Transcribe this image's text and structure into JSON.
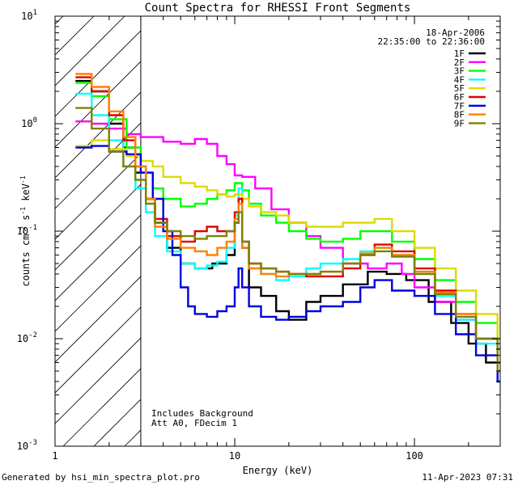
{
  "chart_data": {
    "type": "line",
    "title": "Count Spectra for RHESSI Front Segments",
    "xlabel": "Energy (keV)",
    "ylabel": "counts cm",
    "ylabel_sup1": "-2",
    "ylabel_mid": " s",
    "ylabel_sup2": "-1",
    "ylabel_end": " keV",
    "ylabel_sup3": "-1",
    "xscale": "log",
    "yscale": "log",
    "xlim": [
      1,
      300
    ],
    "ylim": [
      0.001,
      10
    ],
    "x_ticks": [
      1,
      10,
      100
    ],
    "x_tick_labels": [
      "1",
      "10",
      "100"
    ],
    "y_ticks": [
      0.001,
      0.01,
      0.1,
      1,
      10
    ],
    "y_tick_base": "10",
    "y_tick_exps": [
      "-3",
      "-2",
      "-1",
      "0",
      "1"
    ],
    "date": "18-Apr-2006",
    "time_range": "22:35:00 to 22:36:00",
    "annotation_line1": "Includes Background",
    "annotation_line2": "Att A0, FDecim 1",
    "shaded_region_max_keV": 3,
    "series": [
      {
        "name": "1F",
        "color": "#000000",
        "points": [
          [
            1.3,
            2.5
          ],
          [
            1.6,
            2.0
          ],
          [
            2.0,
            1.0
          ],
          [
            2.4,
            0.6
          ],
          [
            2.8,
            0.35
          ],
          [
            3.2,
            0.2
          ],
          [
            3.6,
            0.12
          ],
          [
            4.2,
            0.07
          ],
          [
            5.0,
            0.05
          ],
          [
            6.0,
            0.045
          ],
          [
            7.5,
            0.05
          ],
          [
            9.0,
            0.06
          ],
          [
            10.0,
            0.12
          ],
          [
            10.5,
            0.2
          ],
          [
            11.0,
            0.07
          ],
          [
            12.0,
            0.03
          ],
          [
            14.0,
            0.025
          ],
          [
            17.0,
            0.018
          ],
          [
            20.0,
            0.015
          ],
          [
            25.0,
            0.022
          ],
          [
            30.0,
            0.025
          ],
          [
            40.0,
            0.032
          ],
          [
            55.0,
            0.042
          ],
          [
            70.0,
            0.04
          ],
          [
            90.0,
            0.035
          ],
          [
            120.0,
            0.022
          ],
          [
            160.0,
            0.014
          ],
          [
            200.0,
            0.009
          ],
          [
            250.0,
            0.006
          ],
          [
            290.0,
            0.004
          ]
        ]
      },
      {
        "name": "2F",
        "color": "#ff00ff",
        "points": [
          [
            1.3,
            1.05
          ],
          [
            1.6,
            1.0
          ],
          [
            2.0,
            0.9
          ],
          [
            2.5,
            0.8
          ],
          [
            3.0,
            0.75
          ],
          [
            4.0,
            0.68
          ],
          [
            5.0,
            0.65
          ],
          [
            6.0,
            0.72
          ],
          [
            7.0,
            0.65
          ],
          [
            8.0,
            0.5
          ],
          [
            9.0,
            0.42
          ],
          [
            10.0,
            0.33
          ],
          [
            11.0,
            0.32
          ],
          [
            13.0,
            0.25
          ],
          [
            16.0,
            0.16
          ],
          [
            20.0,
            0.12
          ],
          [
            25.0,
            0.09
          ],
          [
            30.0,
            0.07
          ],
          [
            40.0,
            0.05
          ],
          [
            55.0,
            0.045
          ],
          [
            70.0,
            0.05
          ],
          [
            85.0,
            0.04
          ],
          [
            100.0,
            0.03
          ],
          [
            130.0,
            0.022
          ],
          [
            170.0,
            0.015
          ],
          [
            220.0,
            0.01
          ],
          [
            290.0,
            0.006
          ]
        ]
      },
      {
        "name": "3F",
        "color": "#00ff00",
        "points": [
          [
            1.3,
            2.4
          ],
          [
            1.6,
            1.8
          ],
          [
            2.0,
            1.1
          ],
          [
            2.5,
            0.6
          ],
          [
            3.0,
            0.35
          ],
          [
            3.5,
            0.25
          ],
          [
            4.0,
            0.2
          ],
          [
            5.0,
            0.17
          ],
          [
            6.0,
            0.18
          ],
          [
            7.0,
            0.2
          ],
          [
            8.0,
            0.22
          ],
          [
            9.0,
            0.24
          ],
          [
            10.0,
            0.28
          ],
          [
            11.0,
            0.24
          ],
          [
            12.0,
            0.18
          ],
          [
            14.0,
            0.14
          ],
          [
            17.0,
            0.12
          ],
          [
            20.0,
            0.1
          ],
          [
            25.0,
            0.085
          ],
          [
            30.0,
            0.08
          ],
          [
            40.0,
            0.085
          ],
          [
            50.0,
            0.1
          ],
          [
            60.0,
            0.1
          ],
          [
            75.0,
            0.08
          ],
          [
            100.0,
            0.055
          ],
          [
            130.0,
            0.035
          ],
          [
            170.0,
            0.022
          ],
          [
            220.0,
            0.014
          ],
          [
            290.0,
            0.008
          ]
        ]
      },
      {
        "name": "4F",
        "color": "#00ffff",
        "points": [
          [
            1.3,
            1.9
          ],
          [
            1.6,
            1.2
          ],
          [
            2.0,
            0.7
          ],
          [
            2.4,
            0.4
          ],
          [
            2.8,
            0.25
          ],
          [
            3.2,
            0.15
          ],
          [
            3.6,
            0.09
          ],
          [
            4.2,
            0.065
          ],
          [
            5.0,
            0.05
          ],
          [
            6.0,
            0.045
          ],
          [
            7.0,
            0.048
          ],
          [
            8.0,
            0.052
          ],
          [
            9.0,
            0.07
          ],
          [
            10.0,
            0.14
          ],
          [
            10.5,
            0.25
          ],
          [
            11.0,
            0.08
          ],
          [
            12.0,
            0.045
          ],
          [
            14.0,
            0.04
          ],
          [
            17.0,
            0.035
          ],
          [
            20.0,
            0.038
          ],
          [
            25.0,
            0.045
          ],
          [
            30.0,
            0.05
          ],
          [
            40.0,
            0.055
          ],
          [
            50.0,
            0.065
          ],
          [
            60.0,
            0.07
          ],
          [
            75.0,
            0.06
          ],
          [
            100.0,
            0.04
          ],
          [
            130.0,
            0.025
          ],
          [
            170.0,
            0.015
          ],
          [
            220.0,
            0.009
          ],
          [
            290.0,
            0.005
          ]
        ]
      },
      {
        "name": "5F",
        "color": "#dcdc00",
        "points": [
          [
            1.3,
            0.62
          ],
          [
            1.6,
            0.7
          ],
          [
            2.0,
            0.58
          ],
          [
            2.5,
            0.5
          ],
          [
            3.0,
            0.45
          ],
          [
            3.5,
            0.4
          ],
          [
            4.0,
            0.32
          ],
          [
            5.0,
            0.28
          ],
          [
            6.0,
            0.26
          ],
          [
            7.0,
            0.24
          ],
          [
            8.0,
            0.22
          ],
          [
            9.0,
            0.21
          ],
          [
            10.0,
            0.22
          ],
          [
            11.0,
            0.2
          ],
          [
            12.0,
            0.17
          ],
          [
            14.0,
            0.15
          ],
          [
            17.0,
            0.14
          ],
          [
            20.0,
            0.12
          ],
          [
            25.0,
            0.11
          ],
          [
            30.0,
            0.11
          ],
          [
            40.0,
            0.12
          ],
          [
            50.0,
            0.12
          ],
          [
            60.0,
            0.13
          ],
          [
            75.0,
            0.1
          ],
          [
            100.0,
            0.07
          ],
          [
            130.0,
            0.045
          ],
          [
            170.0,
            0.028
          ],
          [
            220.0,
            0.017
          ],
          [
            290.0,
            0.01
          ]
        ]
      },
      {
        "name": "6F",
        "color": "#e00000",
        "points": [
          [
            1.3,
            2.7
          ],
          [
            1.6,
            2.0
          ],
          [
            2.0,
            1.2
          ],
          [
            2.4,
            0.7
          ],
          [
            2.8,
            0.4
          ],
          [
            3.2,
            0.2
          ],
          [
            3.6,
            0.13
          ],
          [
            4.2,
            0.09
          ],
          [
            5.0,
            0.08
          ],
          [
            6.0,
            0.1
          ],
          [
            7.0,
            0.11
          ],
          [
            8.0,
            0.1
          ],
          [
            9.0,
            0.1
          ],
          [
            10.0,
            0.15
          ],
          [
            10.5,
            0.2
          ],
          [
            11.0,
            0.08
          ],
          [
            12.0,
            0.05
          ],
          [
            14.0,
            0.045
          ],
          [
            17.0,
            0.042
          ],
          [
            20.0,
            0.04
          ],
          [
            25.0,
            0.038
          ],
          [
            30.0,
            0.038
          ],
          [
            40.0,
            0.045
          ],
          [
            50.0,
            0.06
          ],
          [
            60.0,
            0.075
          ],
          [
            75.0,
            0.065
          ],
          [
            100.0,
            0.045
          ],
          [
            130.0,
            0.028
          ],
          [
            170.0,
            0.017
          ],
          [
            220.0,
            0.01
          ],
          [
            290.0,
            0.006
          ]
        ]
      },
      {
        "name": "7F",
        "color": "#0000e0",
        "points": [
          [
            1.3,
            0.6
          ],
          [
            1.6,
            0.62
          ],
          [
            2.0,
            0.55
          ],
          [
            2.5,
            0.52
          ],
          [
            3.0,
            0.35
          ],
          [
            3.5,
            0.2
          ],
          [
            4.0,
            0.1
          ],
          [
            4.5,
            0.06
          ],
          [
            5.0,
            0.03
          ],
          [
            5.5,
            0.02
          ],
          [
            6.0,
            0.017
          ],
          [
            7.0,
            0.016
          ],
          [
            8.0,
            0.018
          ],
          [
            9.0,
            0.02
          ],
          [
            10.0,
            0.03
          ],
          [
            10.5,
            0.045
          ],
          [
            11.0,
            0.03
          ],
          [
            12.0,
            0.02
          ],
          [
            14.0,
            0.016
          ],
          [
            17.0,
            0.015
          ],
          [
            20.0,
            0.016
          ],
          [
            25.0,
            0.018
          ],
          [
            30.0,
            0.02
          ],
          [
            40.0,
            0.022
          ],
          [
            50.0,
            0.03
          ],
          [
            60.0,
            0.035
          ],
          [
            75.0,
            0.028
          ],
          [
            100.0,
            0.025
          ],
          [
            130.0,
            0.017
          ],
          [
            170.0,
            0.011
          ],
          [
            220.0,
            0.007
          ],
          [
            290.0,
            0.004
          ]
        ]
      },
      {
        "name": "8F",
        "color": "#ff8000",
        "points": [
          [
            1.3,
            2.9
          ],
          [
            1.6,
            2.2
          ],
          [
            2.0,
            1.3
          ],
          [
            2.4,
            0.75
          ],
          [
            2.8,
            0.4
          ],
          [
            3.2,
            0.2
          ],
          [
            3.6,
            0.11
          ],
          [
            4.2,
            0.085
          ],
          [
            5.0,
            0.07
          ],
          [
            6.0,
            0.065
          ],
          [
            7.0,
            0.06
          ],
          [
            8.0,
            0.07
          ],
          [
            9.0,
            0.08
          ],
          [
            10.0,
            0.13
          ],
          [
            10.5,
            0.18
          ],
          [
            11.0,
            0.07
          ],
          [
            12.0,
            0.045
          ],
          [
            14.0,
            0.04
          ],
          [
            17.0,
            0.038
          ],
          [
            20.0,
            0.04
          ],
          [
            25.0,
            0.04
          ],
          [
            30.0,
            0.042
          ],
          [
            40.0,
            0.05
          ],
          [
            50.0,
            0.062
          ],
          [
            60.0,
            0.07
          ],
          [
            75.0,
            0.06
          ],
          [
            100.0,
            0.042
          ],
          [
            130.0,
            0.027
          ],
          [
            170.0,
            0.017
          ],
          [
            220.0,
            0.01
          ],
          [
            290.0,
            0.005
          ]
        ]
      },
      {
        "name": "9F",
        "color": "#808000",
        "points": [
          [
            1.3,
            1.4
          ],
          [
            1.6,
            0.9
          ],
          [
            2.0,
            0.55
          ],
          [
            2.4,
            0.4
          ],
          [
            2.8,
            0.3
          ],
          [
            3.2,
            0.18
          ],
          [
            3.6,
            0.12
          ],
          [
            4.2,
            0.1
          ],
          [
            5.0,
            0.09
          ],
          [
            6.0,
            0.085
          ],
          [
            7.0,
            0.09
          ],
          [
            8.0,
            0.09
          ],
          [
            9.0,
            0.1
          ],
          [
            10.0,
            0.12
          ],
          [
            10.5,
            0.15
          ],
          [
            11.0,
            0.08
          ],
          [
            12.0,
            0.05
          ],
          [
            14.0,
            0.045
          ],
          [
            17.0,
            0.042
          ],
          [
            20.0,
            0.04
          ],
          [
            25.0,
            0.04
          ],
          [
            30.0,
            0.042
          ],
          [
            40.0,
            0.05
          ],
          [
            50.0,
            0.06
          ],
          [
            60.0,
            0.065
          ],
          [
            75.0,
            0.058
          ],
          [
            100.0,
            0.04
          ],
          [
            130.0,
            0.026
          ],
          [
            170.0,
            0.016
          ],
          [
            220.0,
            0.01
          ],
          [
            290.0,
            0.005
          ]
        ]
      }
    ]
  },
  "footer": {
    "generated_by": "Generated by hsi_min_spectra_plot.pro",
    "timestamp": "11-Apr-2023 07:31"
  }
}
